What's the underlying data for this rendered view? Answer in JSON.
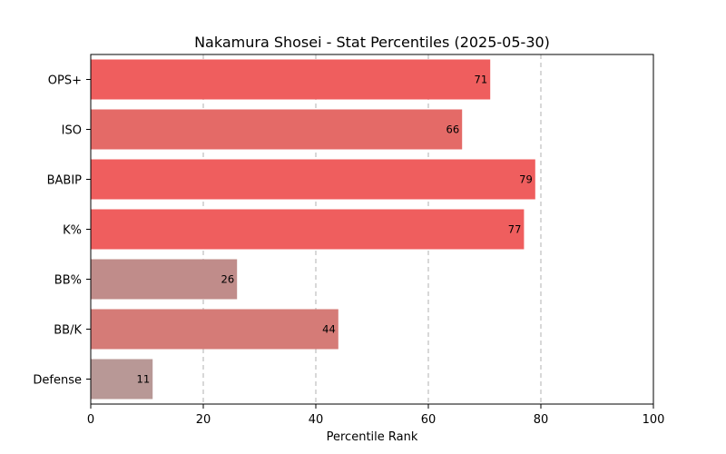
{
  "chart_data": {
    "type": "bar",
    "orientation": "horizontal",
    "title": "Nakamura Shosei - Stat Percentiles (2025-05-30)",
    "xlabel": "Percentile Rank",
    "ylabel": "",
    "xlim": [
      0,
      100
    ],
    "xticks": [
      0,
      20,
      40,
      60,
      80,
      100
    ],
    "grid": "x-dashed",
    "categories": [
      "OPS+",
      "ISO",
      "BABIP",
      "K%",
      "BB%",
      "BB/K",
      "Defense"
    ],
    "values": [
      71,
      66,
      79,
      77,
      26,
      44,
      11
    ],
    "colors": [
      "#ef5e5e",
      "#e46a67",
      "#ef5e5e",
      "#ef5e5e",
      "#c08c8a",
      "#d57b77",
      "#b89896"
    ]
  }
}
